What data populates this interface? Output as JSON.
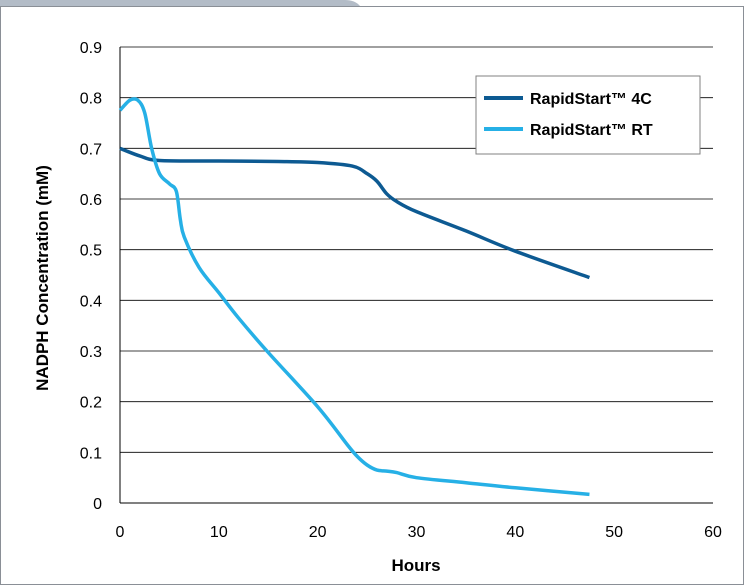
{
  "chart_data": {
    "type": "line",
    "title": "",
    "xlabel": "Hours",
    "ylabel": "NADPH Concentration (mM)",
    "xlim": [
      0,
      60
    ],
    "ylim": [
      0,
      0.9
    ],
    "x_ticks": [
      0,
      10,
      20,
      30,
      40,
      50,
      60
    ],
    "y_ticks": [
      0,
      0.1,
      0.2,
      0.3,
      0.4,
      0.5,
      0.6,
      0.7,
      0.8,
      0.9
    ],
    "x_tick_labels": [
      "0",
      "10",
      "20",
      "30",
      "40",
      "50",
      "60"
    ],
    "y_tick_labels": [
      "0",
      "0.1",
      "0.2",
      "0.3",
      "0.4",
      "0.5",
      "0.6",
      "0.7",
      "0.8",
      "0.9"
    ],
    "grid": "horizontal",
    "legend_position": "top-right",
    "series": [
      {
        "name": "RapidStart™ 4C",
        "color": "#0d5a92",
        "points": [
          [
            0,
            0.7
          ],
          [
            2,
            0.685
          ],
          [
            4,
            0.676
          ],
          [
            10,
            0.675
          ],
          [
            16,
            0.674
          ],
          [
            20,
            0.672
          ],
          [
            23.5,
            0.665
          ],
          [
            25,
            0.65
          ],
          [
            26,
            0.635
          ],
          [
            27,
            0.61
          ],
          [
            28,
            0.595
          ],
          [
            30,
            0.575
          ],
          [
            35,
            0.537
          ],
          [
            40,
            0.497
          ],
          [
            47.5,
            0.445
          ]
        ]
      },
      {
        "name": "RapidStart™ RT",
        "color": "#26b0e6",
        "points": [
          [
            0,
            0.775
          ],
          [
            1,
            0.795
          ],
          [
            1.8,
            0.795
          ],
          [
            2.5,
            0.77
          ],
          [
            3.2,
            0.7
          ],
          [
            4,
            0.65
          ],
          [
            5,
            0.63
          ],
          [
            5.7,
            0.615
          ],
          [
            6.1,
            0.56
          ],
          [
            6.5,
            0.525
          ],
          [
            8,
            0.465
          ],
          [
            10,
            0.415
          ],
          [
            12,
            0.365
          ],
          [
            15,
            0.297
          ],
          [
            20,
            0.19
          ],
          [
            23,
            0.115
          ],
          [
            24,
            0.092
          ],
          [
            25,
            0.075
          ],
          [
            26,
            0.065
          ],
          [
            27,
            0.063
          ],
          [
            28,
            0.06
          ],
          [
            30,
            0.05
          ],
          [
            35,
            0.04
          ],
          [
            40,
            0.03
          ],
          [
            47.5,
            0.017
          ]
        ]
      }
    ]
  }
}
